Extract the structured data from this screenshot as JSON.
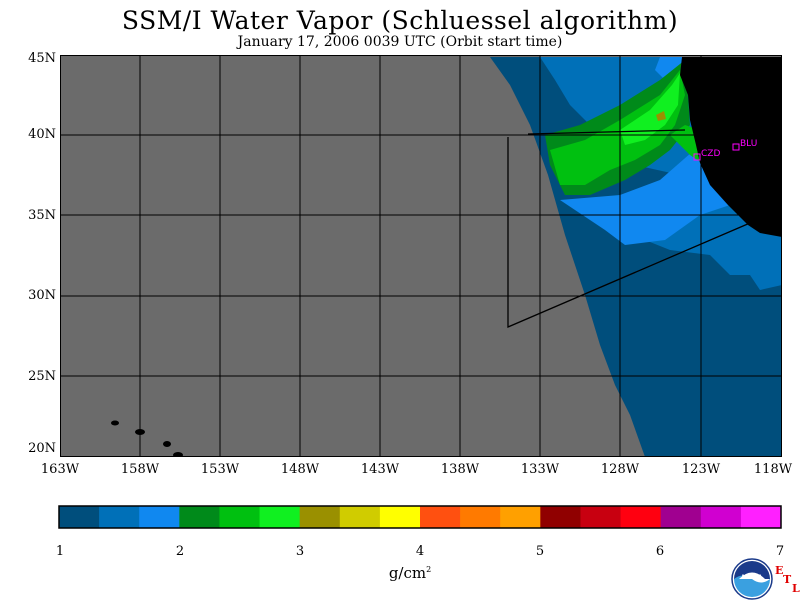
{
  "title": "SSM/I Water Vapor (Schluessel algorithm)",
  "subtitle": "January 17, 2006  0039 UTC  (Orbit start time)",
  "lat_labels": [
    "45N",
    "40N",
    "35N",
    "30N",
    "25N",
    "20N"
  ],
  "lon_labels": [
    "163W",
    "158W",
    "153W",
    "148W",
    "143W",
    "138W",
    "133W",
    "128W",
    "123W",
    "118W"
  ],
  "stations": [
    {
      "code": "CZD"
    },
    {
      "code": "BLU"
    }
  ],
  "colorbar": {
    "ticks": [
      "1",
      "2",
      "3",
      "4",
      "5",
      "6",
      "7"
    ],
    "unit_base": "g/cm",
    "unit_exp": "2",
    "colors": [
      "#004e7c",
      "#0070b8",
      "#1088f0",
      "#008a1a",
      "#00c010",
      "#10f020",
      "#9a9000",
      "#d0cc00",
      "#ffff00",
      "#ff5010",
      "#ff7a00",
      "#ffa000",
      "#900000",
      "#c80010",
      "#ff0010",
      "#a00090",
      "#d000d0",
      "#ff20ff"
    ]
  },
  "map_colors": {
    "nodata": "#6b6b6b",
    "land": "#000000",
    "grid": "#000000",
    "station": "#ff00ff"
  },
  "logo": {
    "text": "NOAA"
  },
  "etl": {
    "e": "E",
    "t": "T",
    "l": "L"
  }
}
